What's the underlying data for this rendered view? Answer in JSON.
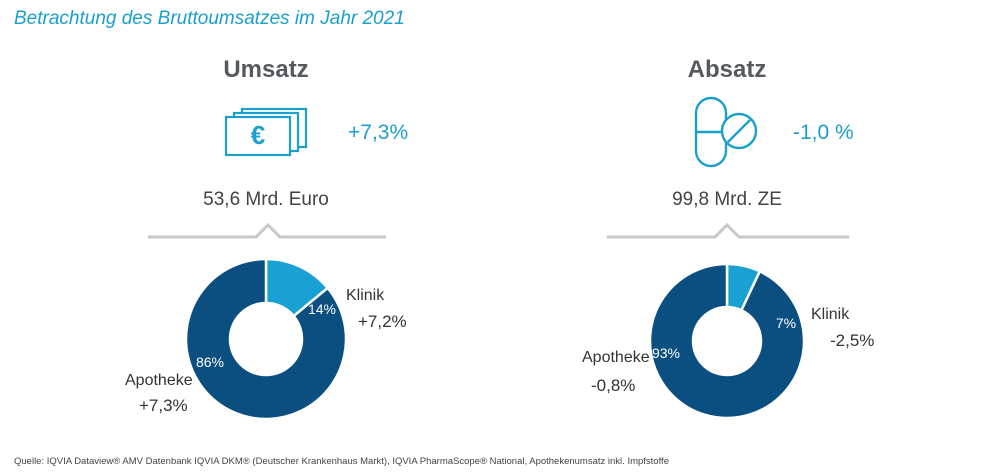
{
  "title": "Betrachtung des Bruttoumsatzes im Jahr 2021",
  "colors": {
    "dark": "#0a4f7f",
    "light": "#1aa1d4",
    "accent_text": "#1ba0cc",
    "bracket": "#c8c8c8"
  },
  "panels": [
    {
      "heading": "Umsatz",
      "icon": "banknotes-euro-icon",
      "change": "+7,3%",
      "total": "53,6 Mrd. Euro",
      "segments": [
        {
          "name": "Klinik",
          "share_label": "14%",
          "change": "+7,2%"
        },
        {
          "name": "Apotheke",
          "share_label": "86%",
          "change": "+7,3%"
        }
      ]
    },
    {
      "heading": "Absatz",
      "icon": "pills-icon",
      "change": "-1,0 %",
      "total": "99,8 Mrd. ZE",
      "segments": [
        {
          "name": "Klinik",
          "share_label": "7%",
          "change": "-2,5%"
        },
        {
          "name": "Apotheke",
          "share_label": "93%",
          "change": "-0,8%"
        }
      ]
    }
  ],
  "chart_data": [
    {
      "type": "pie",
      "categories": [
        "Klinik",
        "Apotheke"
      ],
      "values": [
        14,
        86
      ]
    },
    {
      "type": "pie",
      "categories": [
        "Klinik",
        "Apotheke"
      ],
      "values": [
        7,
        93
      ]
    }
  ],
  "source": "Quelle: IQVIA Dataview® AMV Datenbank IQVIA DKM® (Deutscher Krankenhaus Markt), IQVIA PharmaScope® National, Apothekenumsatz inkl. Impfstoffe"
}
